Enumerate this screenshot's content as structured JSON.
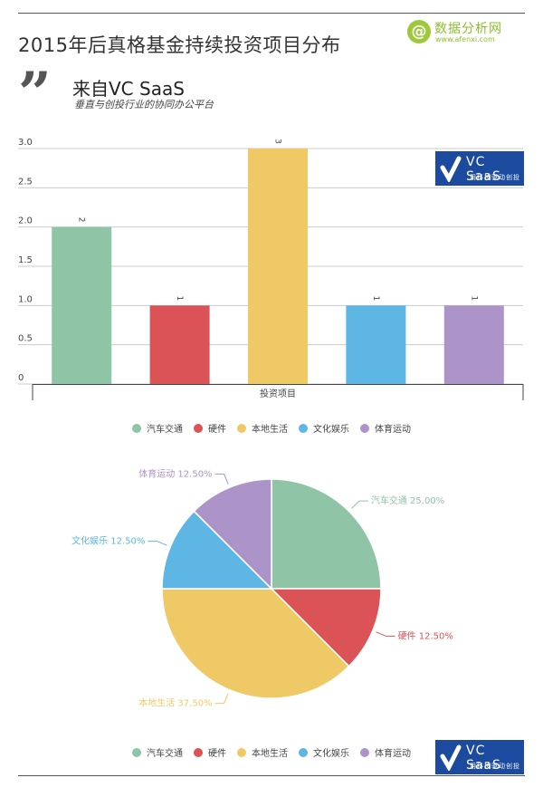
{
  "page": {
    "title": "2015年后真格基金持续投资项目分布",
    "source_title": "来自VC SaaS",
    "source_subtitle": "垂直与创投行业的协同办公平台"
  },
  "brand": {
    "icon": "at-icon",
    "name": "数据分析网",
    "url": "www.afenxi.com"
  },
  "vc_logo": {
    "name": "VC  SaaS",
    "tagline": "用科技驱动创投"
  },
  "colors": {
    "汽车交通": "#8fc4a7",
    "硬件": "#db5357",
    "本地生活": "#eec966",
    "文化娱乐": "#5db6e3",
    "体育运动": "#ac94c9"
  },
  "chart_data": [
    {
      "type": "bar",
      "categories": [
        "汽车交通",
        "硬件",
        "本地生活",
        "文化娱乐",
        "体育运动"
      ],
      "values": [
        2,
        1,
        3,
        1,
        1
      ],
      "data_labels": [
        "2",
        "1",
        "3",
        "1",
        "1"
      ],
      "xlabel": "投资项目",
      "ylabel": "",
      "ylim": [
        0,
        3
      ],
      "yticks": [
        "0",
        "0.5",
        "1.0",
        "1.5",
        "2.0",
        "2.5",
        "3.0"
      ],
      "ytick_values": [
        0,
        0.5,
        1,
        1.5,
        2,
        2.5,
        3
      ],
      "grid": true,
      "legend": "bottom"
    },
    {
      "type": "pie",
      "categories": [
        "汽车交通",
        "硬件",
        "本地生活",
        "文化娱乐",
        "体育运动"
      ],
      "values": [
        25.0,
        12.5,
        37.5,
        12.5,
        12.5
      ],
      "labels": [
        "汽车交通 25.00%",
        "硬件 12.50%",
        "本地生活 37.50%",
        "文化娱乐 12.50%",
        "体育运动 12.50%"
      ],
      "legend": "bottom"
    }
  ]
}
